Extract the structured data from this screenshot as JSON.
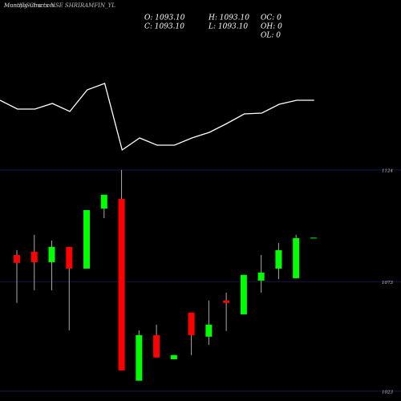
{
  "chart_data": [
    {
      "type": "line",
      "title": "Monthly Charts NSE SHRIRAMFIN_YL",
      "watermark": "MunafaSutra.com",
      "values": [
        75,
        64,
        64,
        71,
        61,
        88,
        96,
        13,
        28,
        19,
        19,
        28,
        35,
        46,
        58,
        59,
        70,
        75,
        75
      ],
      "color": "#ffffff",
      "ylim": [
        0,
        100
      ]
    },
    {
      "type": "candlestick",
      "annotations": [
        "O: 1093.10",
        "H: 1093.10",
        "OC: 0",
        "C: 1093.10",
        "L: 1093.10",
        "OH: 0",
        "OL: 0"
      ],
      "open": [
        1085.2,
        1086.7,
        1081.9,
        1088.9,
        1079.0,
        1106.4,
        1110.8,
        1027.8,
        1048.6,
        1037.6,
        1058.9,
        1047.9,
        1064.4,
        1058.1,
        1073.5,
        1079.0,
        1074.6,
        1093.1
      ],
      "high": [
        1087.4,
        1094.4,
        1091.8,
        1088.9,
        1105.7,
        1112.7,
        1124.0,
        1050.8,
        1053.4,
        1039.5,
        1058.9,
        1064.4,
        1068.0,
        1076.1,
        1085.2,
        1090.7,
        1094.4,
        1093.1
      ],
      "low": [
        1063.3,
        1069.1,
        1069.1,
        1050.8,
        1079.0,
        1102.0,
        1032.5,
        1027.8,
        1038.4,
        1037.6,
        1039.5,
        1044.2,
        1050.5,
        1058.1,
        1068.0,
        1074.2,
        1074.6,
        1093.1
      ],
      "close": [
        1081.6,
        1081.9,
        1088.9,
        1079.0,
        1105.7,
        1112.7,
        1032.5,
        1048.6,
        1038.4,
        1039.5,
        1048.6,
        1053.4,
        1063.3,
        1076.1,
        1077.2,
        1087.4,
        1092.9,
        1093.1
      ],
      "up_color": "#00ff00",
      "down_color": "#ff0000",
      "ylim": [
        1020,
        1126
      ],
      "yticks": [
        1023,
        1073,
        1124
      ],
      "grid": true
    }
  ]
}
